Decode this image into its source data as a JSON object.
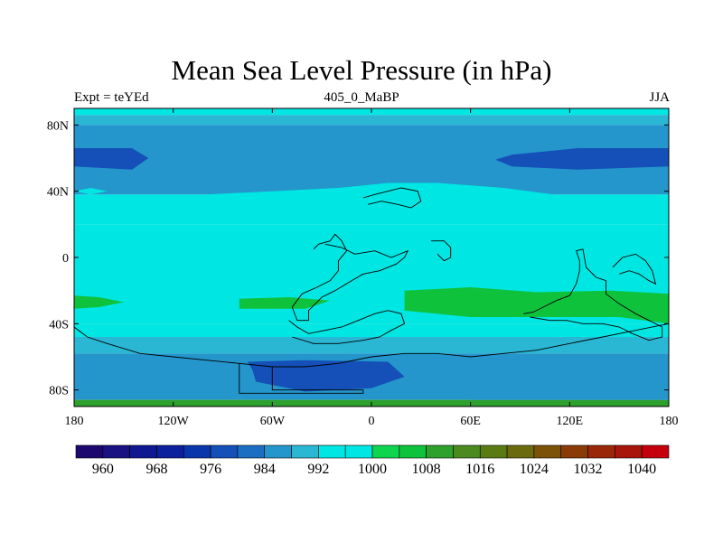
{
  "title": "Mean Sea Level Pressure (in hPa)",
  "subtitle_left": "Expt = teYEd",
  "subtitle_center": "405_0_MaBP",
  "subtitle_right": "JJA",
  "chart_data": {
    "type": "heatmap",
    "title": "Mean Sea Level Pressure (in hPa)",
    "units": "hPa",
    "x_axis": {
      "range": [
        -180,
        180
      ],
      "ticks": [
        {
          "value": -180,
          "label": "180"
        },
        {
          "value": -120,
          "label": "120W"
        },
        {
          "value": -60,
          "label": "60W"
        },
        {
          "value": 0,
          "label": "0"
        },
        {
          "value": 60,
          "label": "60E"
        },
        {
          "value": 120,
          "label": "120E"
        },
        {
          "value": 180,
          "label": "180"
        }
      ]
    },
    "y_axis": {
      "range": [
        -90,
        90
      ],
      "ticks": [
        {
          "value": 80,
          "label": "80N"
        },
        {
          "value": 40,
          "label": "40N"
        },
        {
          "value": 0,
          "label": "0"
        },
        {
          "value": -40,
          "label": "40S"
        },
        {
          "value": -80,
          "label": "80S"
        }
      ]
    },
    "colorbar": {
      "levels": [
        956,
        960,
        964,
        968,
        972,
        976,
        980,
        984,
        988,
        992,
        996,
        1000,
        1004,
        1008,
        1012,
        1016,
        1020,
        1024,
        1028,
        1032,
        1036,
        1040,
        1044
      ],
      "colors": [
        "#1d0870",
        "#1a1182",
        "#0f1791",
        "#0c1f9c",
        "#0a36ab",
        "#1450b8",
        "#1b6ec2",
        "#2496cc",
        "#2ab7d4",
        "#00e6e2",
        "#00e6e2",
        "#0fd44e",
        "#0fc23c",
        "#2ea02c",
        "#4b8a1f",
        "#5a7a12",
        "#6b6a0c",
        "#7c5208",
        "#8a3b06",
        "#9a2808",
        "#a8150b",
        "#c4000c"
      ],
      "labels": [
        {
          "value": 960,
          "label": "960"
        },
        {
          "value": 968,
          "label": "968"
        },
        {
          "value": 976,
          "label": "976"
        },
        {
          "value": 984,
          "label": "984"
        },
        {
          "value": 992,
          "label": "992"
        },
        {
          "value": 1000,
          "label": "1000"
        },
        {
          "value": 1008,
          "label": "1008"
        },
        {
          "value": 1016,
          "label": "1016"
        },
        {
          "value": 1024,
          "label": "1024"
        },
        {
          "value": 1032,
          "label": "1032"
        },
        {
          "value": 1040,
          "label": "1040"
        }
      ]
    },
    "bands": [
      {
        "lat_top": 90,
        "lat_bottom": 86,
        "value": 994
      },
      {
        "lat_top": 86,
        "lat_bottom": 80,
        "value": 990
      },
      {
        "lat_top": 80,
        "lat_bottom": 38,
        "value": 986
      },
      {
        "lat_top": 38,
        "lat_bottom": 20,
        "value": 994
      },
      {
        "lat_top": 20,
        "lat_bottom": -40,
        "value": 998
      },
      {
        "lat_top": -40,
        "lat_bottom": -48,
        "value": 994
      },
      {
        "lat_top": -48,
        "lat_bottom": -58,
        "value": 990
      },
      {
        "lat_top": -58,
        "lat_bottom": -86,
        "value": 986
      },
      {
        "lat_top": -86,
        "lat_bottom": -90,
        "value": 1008
      }
    ],
    "features": [
      {
        "name": "north-pacific-low-deep",
        "value": 976,
        "points": [
          [
            -180,
            66
          ],
          [
            -145,
            66
          ],
          [
            -135,
            60
          ],
          [
            -145,
            53
          ],
          [
            -180,
            55
          ]
        ]
      },
      {
        "name": "north-asia-low-deep",
        "value": 976,
        "points": [
          [
            180,
            66
          ],
          [
            125,
            66
          ],
          [
            85,
            62
          ],
          [
            75,
            59
          ],
          [
            85,
            55
          ],
          [
            125,
            53
          ],
          [
            180,
            55
          ]
        ]
      },
      {
        "name": "mid-atlantic-high",
        "value": 994,
        "points": [
          [
            -100,
            38
          ],
          [
            -60,
            40
          ],
          [
            -20,
            42
          ],
          [
            10,
            45
          ],
          [
            40,
            45
          ],
          [
            80,
            42
          ],
          [
            110,
            38
          ],
          [
            100,
            32
          ],
          [
            60,
            36
          ],
          [
            20,
            36
          ],
          [
            -20,
            34
          ],
          [
            -60,
            32
          ],
          [
            -100,
            34
          ]
        ]
      },
      {
        "name": "north-pacific-moderate",
        "value": 994,
        "points": [
          [
            -180,
            15
          ],
          [
            -140,
            16
          ],
          [
            -95,
            14
          ],
          [
            -95,
            4
          ],
          [
            -140,
            -4
          ],
          [
            -180,
            -4
          ]
        ]
      },
      {
        "name": "eq-africa-moderate",
        "value": 994,
        "points": [
          [
            -35,
            5
          ],
          [
            0,
            12
          ],
          [
            20,
            5
          ],
          [
            40,
            5
          ],
          [
            60,
            15
          ],
          [
            85,
            12
          ],
          [
            80,
            8
          ],
          [
            40,
            -2
          ],
          [
            10,
            -6
          ],
          [
            -20,
            -18
          ],
          [
            -40,
            -6
          ]
        ]
      },
      {
        "name": "south-pacific-high",
        "value": 1004,
        "points": [
          [
            -180,
            -23
          ],
          [
            -165,
            -24
          ],
          [
            -150,
            -27
          ],
          [
            -165,
            -30
          ],
          [
            -180,
            -31
          ]
        ]
      },
      {
        "name": "south-atlantic-high",
        "value": 1004,
        "points": [
          [
            -80,
            -25
          ],
          [
            -50,
            -24
          ],
          [
            -25,
            -26
          ],
          [
            -40,
            -31
          ],
          [
            -80,
            -31
          ]
        ]
      },
      {
        "name": "indian-ocean-high",
        "value": 1004,
        "points": [
          [
            20,
            -20
          ],
          [
            60,
            -18
          ],
          [
            100,
            -21
          ],
          [
            145,
            -20
          ],
          [
            180,
            -22
          ],
          [
            180,
            -40
          ],
          [
            150,
            -36
          ],
          [
            110,
            -36
          ],
          [
            60,
            -36
          ],
          [
            20,
            -32
          ]
        ]
      },
      {
        "name": "southern-ocean-deep-low",
        "value": 976,
        "points": [
          [
            -75,
            -63
          ],
          [
            -40,
            -62
          ],
          [
            10,
            -63
          ],
          [
            20,
            -72
          ],
          [
            0,
            -79
          ],
          [
            -40,
            -81
          ],
          [
            -70,
            -75
          ],
          [
            -72,
            -68
          ]
        ]
      },
      {
        "name": "antarctic-margin-low",
        "value": 986,
        "points": [
          [
            60,
            -86
          ],
          [
            120,
            -86
          ],
          [
            180,
            -86
          ],
          [
            180,
            -82
          ],
          [
            120,
            -80
          ],
          [
            60,
            -82
          ]
        ]
      },
      {
        "name": "east-pacific-small-cyan",
        "value": 998,
        "points": [
          [
            -180,
            40
          ],
          [
            -170,
            42
          ],
          [
            -160,
            40
          ],
          [
            -170,
            38
          ]
        ]
      }
    ],
    "coastlines": [
      {
        "name": "africa-region",
        "points": [
          [
            -35,
            5
          ],
          [
            -32,
            8
          ],
          [
            -25,
            10
          ],
          [
            -22,
            14
          ],
          [
            -18,
            10
          ],
          [
            -15,
            4
          ],
          [
            -20,
            -2
          ],
          [
            -20,
            -8
          ],
          [
            -25,
            -14
          ],
          [
            -33,
            -18
          ],
          [
            -42,
            -22
          ],
          [
            -48,
            -30
          ],
          [
            -45,
            -38
          ],
          [
            -38,
            -38
          ],
          [
            -38,
            -32
          ],
          [
            -30,
            -24
          ],
          [
            -22,
            -20
          ],
          [
            -12,
            -14
          ],
          [
            -5,
            -10
          ],
          [
            5,
            -8
          ],
          [
            15,
            -4
          ],
          [
            20,
            0
          ],
          [
            22,
            4
          ],
          [
            12,
            0
          ],
          [
            2,
            4
          ],
          [
            -10,
            2
          ],
          [
            -18,
            6
          ],
          [
            -28,
            8
          ]
        ]
      },
      {
        "name": "south-america-region",
        "points": [
          [
            -50,
            -38
          ],
          [
            -45,
            -42
          ],
          [
            -38,
            -46
          ],
          [
            -28,
            -44
          ],
          [
            -18,
            -42
          ],
          [
            -8,
            -38
          ],
          [
            2,
            -34
          ],
          [
            10,
            -32
          ],
          [
            18,
            -34
          ],
          [
            20,
            -40
          ],
          [
            12,
            -44
          ],
          [
            5,
            -48
          ],
          [
            -5,
            -50
          ],
          [
            -20,
            -52
          ],
          [
            -35,
            -52
          ],
          [
            -48,
            -48
          ]
        ]
      },
      {
        "name": "australia-asia-region",
        "points": [
          [
            92,
            -34
          ],
          [
            98,
            -33
          ],
          [
            104,
            -30
          ],
          [
            112,
            -26
          ],
          [
            120,
            -23
          ],
          [
            124,
            -16
          ],
          [
            126,
            -8
          ],
          [
            126,
            -2
          ],
          [
            124,
            4
          ],
          [
            128,
            5
          ],
          [
            130,
            -6
          ],
          [
            136,
            -12
          ],
          [
            142,
            -14
          ],
          [
            142,
            -22
          ],
          [
            150,
            -28
          ],
          [
            160,
            -34
          ],
          [
            168,
            -38
          ],
          [
            176,
            -42
          ],
          [
            176,
            -48
          ],
          [
            168,
            -50
          ],
          [
            158,
            -46
          ],
          [
            150,
            -42
          ],
          [
            140,
            -40
          ],
          [
            128,
            -40
          ],
          [
            118,
            -38
          ],
          [
            108,
            -38
          ],
          [
            96,
            -36
          ]
        ]
      },
      {
        "name": "pacific-islands",
        "points": [
          [
            146,
            -6
          ],
          [
            152,
            0
          ],
          [
            160,
            2
          ],
          [
            166,
            -2
          ],
          [
            170,
            -8
          ],
          [
            172,
            -16
          ],
          [
            168,
            -14
          ],
          [
            162,
            -10
          ],
          [
            156,
            -8
          ],
          [
            150,
            -10
          ]
        ]
      },
      {
        "name": "north-mediterranean",
        "points": [
          [
            -5,
            36
          ],
          [
            2,
            38
          ],
          [
            10,
            40
          ],
          [
            18,
            42
          ],
          [
            28,
            40
          ],
          [
            30,
            34
          ],
          [
            24,
            30
          ],
          [
            16,
            32
          ],
          [
            6,
            34
          ],
          [
            -2,
            32
          ]
        ]
      },
      {
        "name": "arabia",
        "points": [
          [
            36,
            10
          ],
          [
            44,
            10
          ],
          [
            48,
            6
          ],
          [
            48,
            0
          ],
          [
            44,
            -2
          ],
          [
            40,
            2
          ]
        ]
      },
      {
        "name": "antarctica-shelf",
        "points": [
          [
            -180,
            -42
          ],
          [
            -172,
            -48
          ],
          [
            -160,
            -52
          ],
          [
            -140,
            -58
          ],
          [
            -120,
            -60
          ],
          [
            -100,
            -62
          ],
          [
            -80,
            -64
          ],
          [
            -60,
            -66
          ],
          [
            -40,
            -66
          ],
          [
            -20,
            -64
          ],
          [
            0,
            -60
          ],
          [
            20,
            -58
          ],
          [
            40,
            -58
          ],
          [
            60,
            -60
          ],
          [
            80,
            -58
          ],
          [
            100,
            -56
          ],
          [
            120,
            -52
          ],
          [
            140,
            -48
          ],
          [
            160,
            -44
          ],
          [
            180,
            -40
          ]
        ]
      },
      {
        "name": "antarctica-inner",
        "points": [
          [
            -80,
            -64
          ],
          [
            -80,
            -82
          ],
          [
            -5,
            -82
          ],
          [
            -5,
            -80
          ],
          [
            -60,
            -80
          ],
          [
            -60,
            -66
          ]
        ]
      }
    ]
  }
}
